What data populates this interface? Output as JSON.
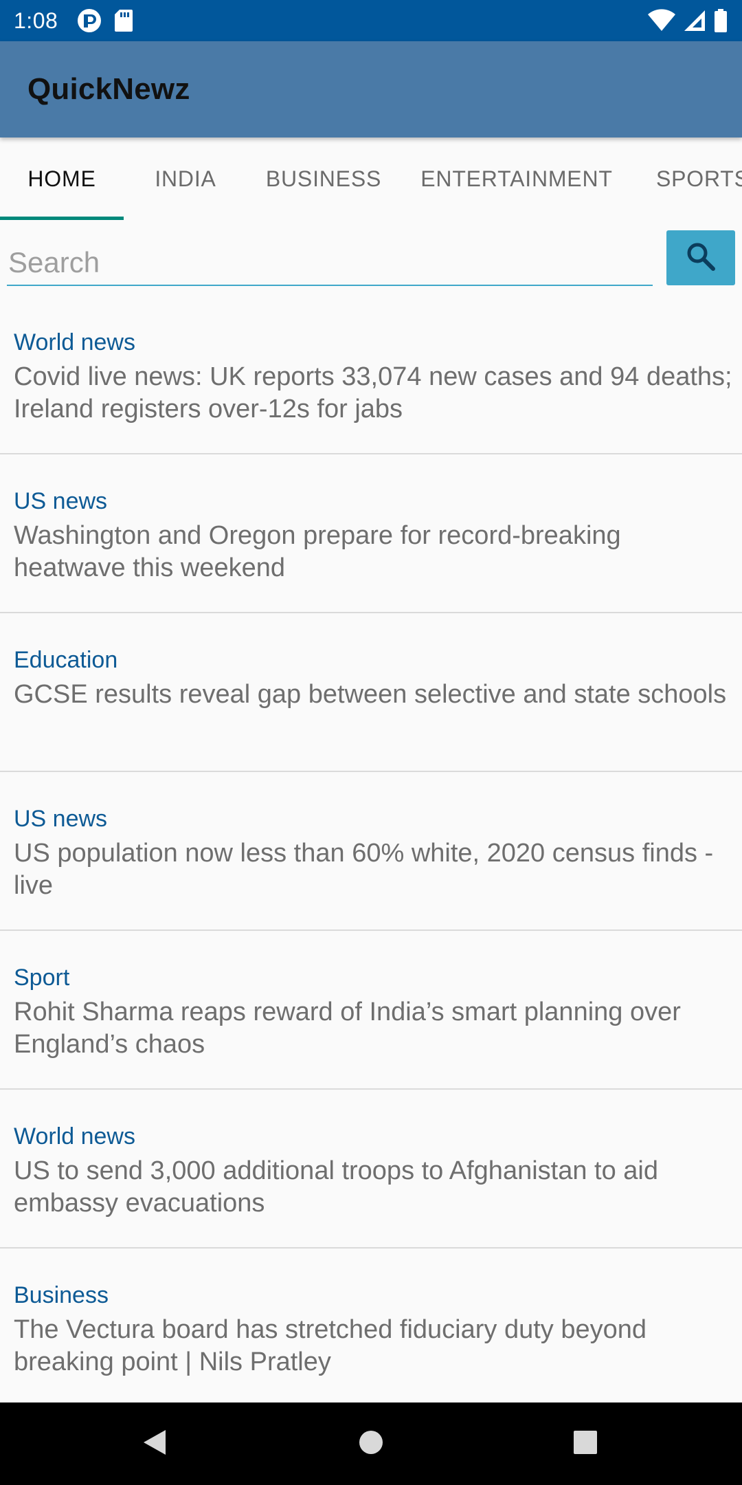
{
  "status_bar": {
    "time": "1:08",
    "left_icons": [
      "app-notification-icon",
      "sd-card-icon"
    ],
    "right_icons": [
      "wifi-icon",
      "cell-signal-icon",
      "battery-icon"
    ]
  },
  "app_bar": {
    "title": "QuickNewz"
  },
  "tabs": [
    {
      "label": "HOME",
      "active": true
    },
    {
      "label": "INDIA",
      "active": false
    },
    {
      "label": "BUSINESS",
      "active": false
    },
    {
      "label": "ENTERTAINMENT",
      "active": false
    },
    {
      "label": "SPORTS",
      "active": false
    }
  ],
  "search": {
    "placeholder": "Search",
    "value": "",
    "button_icon": "search-icon"
  },
  "news": [
    {
      "category": "World news",
      "title": "Covid live news: UK reports 33,074 new cases and 94 deaths; Ireland registers over-12s for jabs"
    },
    {
      "category": "US news",
      "title": "Washington and Oregon prepare for record-breaking heatwave this weekend"
    },
    {
      "category": "Education",
      "title": "GCSE results reveal gap between selective and state schools"
    },
    {
      "category": "US news",
      "title": "US population now less than 60% white, 2020 census finds - live"
    },
    {
      "category": "Sport",
      "title": "Rohit Sharma reaps reward of India’s smart planning over England’s chaos"
    },
    {
      "category": "World news",
      "title": "US to send 3,000 additional troops to Afghanistan to aid embassy evacuations"
    },
    {
      "category": "Business",
      "title": "The Vectura board has stretched fiduciary duty beyond breaking point | Nils Pratley"
    }
  ],
  "colors": {
    "status_bar": "#01579b",
    "app_bar": "#4a7aa7",
    "accent": "#3fa7c9",
    "tab_indicator": "#00897b",
    "category_text": "#0d5a95"
  },
  "nav_bar": {
    "icons": [
      "back-icon",
      "home-icon",
      "recents-icon"
    ]
  }
}
